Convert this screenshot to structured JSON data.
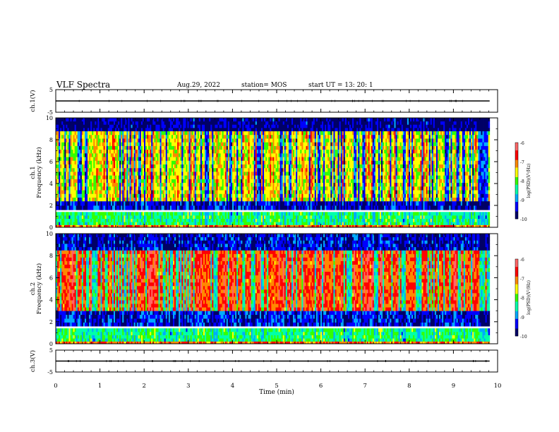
{
  "header": {
    "title": "VLF Spectra",
    "date": "Aug.29, 2022",
    "station": "station= MOS",
    "start": "start  UT  =    13: 20: 1"
  },
  "colors": {
    "spectrogram_scale": [
      "#000066",
      "#0000ff",
      "#00aaff",
      "#00ffaa",
      "#33ff00",
      "#ffff00",
      "#ff8800",
      "#ff0000",
      "#ff6666",
      "#ffffff"
    ]
  },
  "chart_data": [
    {
      "type": "line",
      "panel": "ch1-waveform",
      "ylabel": "ch.1(V)",
      "yticks": [
        "5",
        "-5"
      ],
      "ylim": [
        -5,
        5
      ],
      "series": [
        {
          "x": [
            0,
            9.82
          ],
          "y": [
            0,
            0
          ]
        }
      ]
    },
    {
      "type": "heatmap",
      "panel": "ch1-spectrogram",
      "ylabel": "ch.1\nFrequency (kHz)",
      "ylabel_line1": "ch.1",
      "ylabel_line2": "Frequency (kHz)",
      "yticks": [
        "0",
        "2",
        "4",
        "6",
        "8",
        "10"
      ],
      "ylim": [
        0,
        10
      ],
      "xlim": [
        0,
        9.82
      ],
      "colorbar": {
        "label": "log(PSD)(V²/Hz)",
        "ticks": [
          "-6",
          "-7",
          "-8",
          "-9",
          "-10"
        ],
        "range": [
          -10,
          -6
        ]
      },
      "bands_kHz": [
        [
          0.2,
          1.4
        ],
        [
          1.6,
          2.4
        ],
        [
          2.4,
          8.8
        ],
        [
          8.8,
          10
        ]
      ],
      "band_level": [
        -8.2,
        -9.4,
        -7.6,
        -9.6
      ]
    },
    {
      "type": "heatmap",
      "panel": "ch2-spectrogram",
      "ylabel": "ch.2\nFrequency (kHz)",
      "ylabel_line1": "ch.2",
      "ylabel_line2": "Frequency (kHz)",
      "yticks": [
        "0",
        "2",
        "4",
        "6",
        "8",
        "10"
      ],
      "ylim": [
        0,
        10
      ],
      "xlim": [
        0,
        9.82
      ],
      "colorbar": {
        "label": "log(PSD)(V²/Hz)",
        "ticks": [
          "-6",
          "-7",
          "-8",
          "-9",
          "-10"
        ],
        "range": [
          -10,
          -6
        ]
      },
      "bands_kHz": [
        [
          0.2,
          1.4
        ],
        [
          1.6,
          3.0
        ],
        [
          3.0,
          8.5
        ],
        [
          8.5,
          10
        ]
      ],
      "band_level": [
        -8.2,
        -9.3,
        -6.9,
        -9.4
      ]
    },
    {
      "type": "line",
      "panel": "ch3-waveform",
      "ylabel": "ch.3(V)",
      "yticks": [
        "5",
        "-5"
      ],
      "ylim": [
        -5,
        5
      ],
      "series": [
        {
          "x": [
            0,
            9.82
          ],
          "y": [
            0,
            0
          ]
        }
      ]
    }
  ],
  "xaxis": {
    "label": "Time  (min)",
    "ticks": [
      "0",
      "1",
      "2",
      "3",
      "4",
      "5",
      "6",
      "7",
      "8",
      "9",
      "10"
    ],
    "range": [
      0,
      10
    ]
  }
}
